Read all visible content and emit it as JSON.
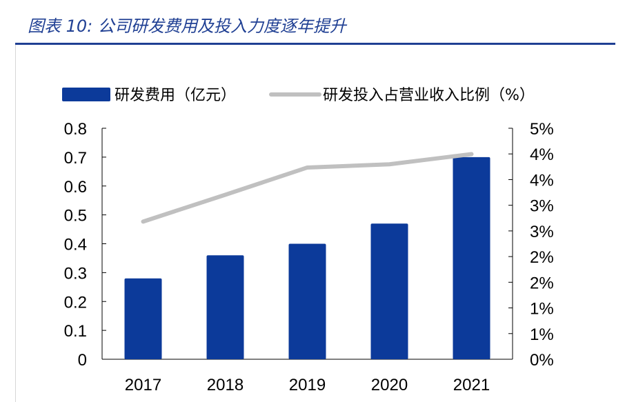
{
  "header": {
    "title": "图表 10:  公司研发费用及投入力度逐年提升"
  },
  "chart_data": {
    "type": "bar",
    "categories": [
      "2017",
      "2018",
      "2019",
      "2020",
      "2021"
    ],
    "series": [
      {
        "name": "研发费用（亿元）",
        "type": "bar",
        "axis": "left",
        "values": [
          0.28,
          0.36,
          0.4,
          0.47,
          0.7
        ],
        "color": "#0c3a9a"
      },
      {
        "name": "研发投入占营业收入比例（%）",
        "type": "line",
        "axis": "right",
        "values": [
          2.98,
          3.56,
          4.15,
          4.22,
          4.44
        ],
        "color": "#c0c0c0"
      }
    ],
    "y_left": {
      "ylim": [
        0,
        0.8
      ],
      "ticks": [
        "0",
        "0.1",
        "0.2",
        "0.3",
        "0.4",
        "0.5",
        "0.6",
        "0.7",
        "0.8"
      ]
    },
    "y_right": {
      "ylim": [
        0,
        5
      ],
      "ticks": [
        "0%",
        "1%",
        "1%",
        "2%",
        "2%",
        "3%",
        "3%",
        "4%",
        "4%",
        "5%"
      ]
    },
    "legend": "top",
    "grid": false
  }
}
